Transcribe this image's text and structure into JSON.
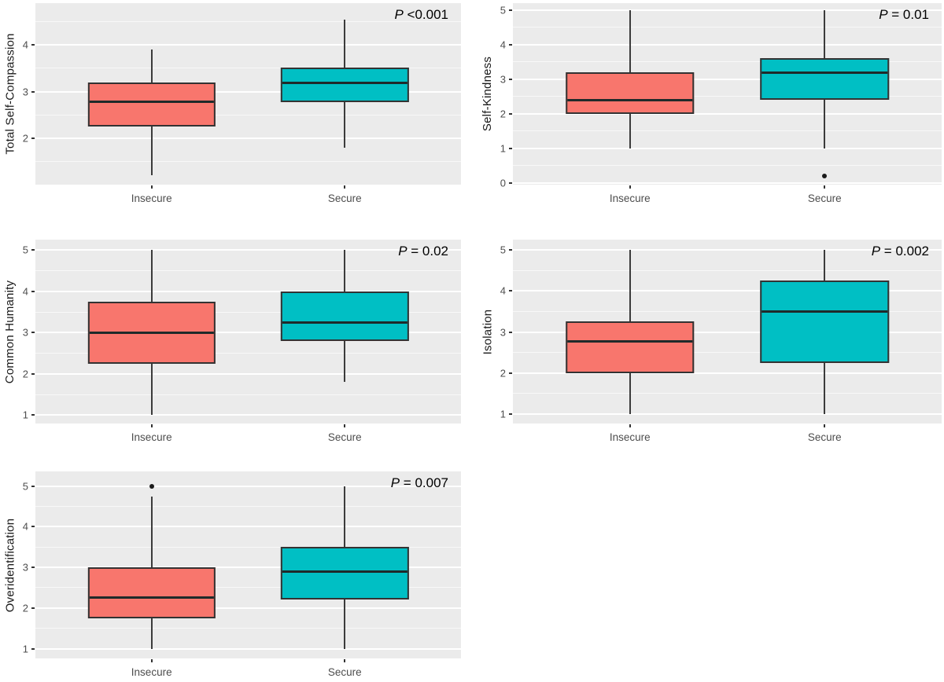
{
  "figure": {
    "description": "Five box plots comparing attachment groups on self-compassion subscales",
    "groups": [
      "Insecure",
      "Secure"
    ]
  },
  "colors": {
    "insecure_fill": "#F8766D",
    "secure_fill": "#00BFC4",
    "panel_background": "#EBEBEB",
    "grid_major": "#FFFFFF",
    "box_border": "#333333",
    "whisker": "#3B3B3B",
    "tick_text": "#4D4D4D",
    "axis_title_text": "#1A1A1A",
    "outlier_dot": "#1A1A1A",
    "p_text": "#000000"
  },
  "categories": [
    "Insecure",
    "Secure"
  ],
  "chart_data": [
    {
      "type": "box",
      "ylabel": "Total Self-Compassion",
      "p_prefix": "P",
      "p_rest": " <0.001",
      "ylim": [
        1.0,
        4.9
      ],
      "yticks": [
        2,
        3,
        4
      ],
      "categories": [
        "Insecure",
        "Secure"
      ],
      "series": [
        {
          "name": "Insecure",
          "min": 1.2,
          "q1": 2.25,
          "median": 2.78,
          "q3": 3.2,
          "max": 3.9,
          "outliers": []
        },
        {
          "name": "Secure",
          "min": 1.8,
          "q1": 2.78,
          "median": 3.18,
          "q3": 3.52,
          "max": 4.55,
          "outliers": []
        }
      ]
    },
    {
      "type": "box",
      "ylabel": "Self-Kindness",
      "p_prefix": "P",
      "p_rest": " = 0.01",
      "ylim": [
        -0.05,
        5.2
      ],
      "yticks": [
        0,
        1,
        2,
        3,
        4,
        5
      ],
      "categories": [
        "Insecure",
        "Secure"
      ],
      "series": [
        {
          "name": "Insecure",
          "min": 1.0,
          "q1": 2.0,
          "median": 2.4,
          "q3": 3.2,
          "max": 5.0,
          "outliers": []
        },
        {
          "name": "Secure",
          "min": 1.0,
          "q1": 2.4,
          "median": 3.2,
          "q3": 3.6,
          "max": 5.0,
          "outliers": [
            0.2
          ]
        }
      ]
    },
    {
      "type": "box",
      "ylabel": "Common Humanity",
      "p_prefix": "P",
      "p_rest": " = 0.02",
      "ylim": [
        0.8,
        5.25
      ],
      "yticks": [
        1,
        2,
        3,
        4,
        5
      ],
      "categories": [
        "Insecure",
        "Secure"
      ],
      "series": [
        {
          "name": "Insecure",
          "min": 1.0,
          "q1": 2.25,
          "median": 3.0,
          "q3": 3.75,
          "max": 5.0,
          "outliers": []
        },
        {
          "name": "Secure",
          "min": 1.8,
          "q1": 2.8,
          "median": 3.25,
          "q3": 4.0,
          "max": 5.0,
          "outliers": []
        }
      ]
    },
    {
      "type": "box",
      "ylabel": "Isolation",
      "p_prefix": "P",
      "p_rest": " = 0.002",
      "ylim": [
        0.77,
        5.25
      ],
      "yticks": [
        1,
        2,
        3,
        4,
        5
      ],
      "categories": [
        "Insecure",
        "Secure"
      ],
      "series": [
        {
          "name": "Insecure",
          "min": 1.0,
          "q1": 2.0,
          "median": 2.78,
          "q3": 3.25,
          "max": 5.0,
          "outliers": []
        },
        {
          "name": "Secure",
          "min": 1.0,
          "q1": 2.25,
          "median": 3.5,
          "q3": 4.25,
          "max": 5.0,
          "outliers": []
        }
      ]
    },
    {
      "type": "box",
      "ylabel": "Overidentification",
      "p_prefix": "P",
      "p_rest": " = 0.007",
      "ylim": [
        0.76,
        5.36
      ],
      "yticks": [
        1,
        2,
        3,
        4,
        5
      ],
      "categories": [
        "Insecure",
        "Secure"
      ],
      "series": [
        {
          "name": "Insecure",
          "min": 1.0,
          "q1": 1.75,
          "median": 2.25,
          "q3": 3.0,
          "max": 4.75,
          "outliers": [
            5.0
          ]
        },
        {
          "name": "Secure",
          "min": 1.0,
          "q1": 2.2,
          "median": 2.9,
          "q3": 3.5,
          "max": 5.0,
          "outliers": []
        }
      ]
    }
  ]
}
